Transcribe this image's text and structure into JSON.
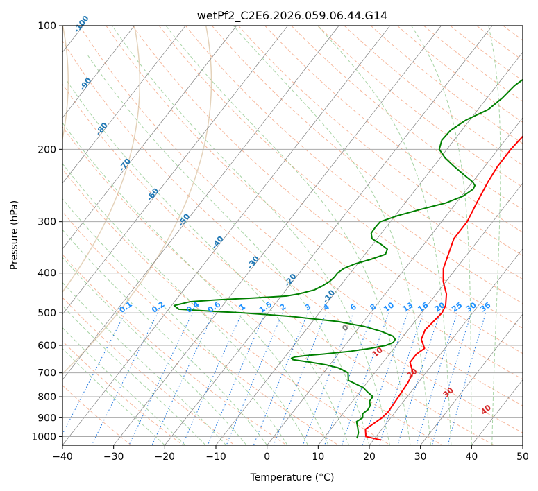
{
  "chart_data": {
    "type": "line",
    "chart_kind": "skew-t log-p",
    "title": "wetPf2_C2E6.2026.059.06.44.G14",
    "xlabel": "Temperature (°C)",
    "ylabel": "Pressure (hPa)",
    "xlim": [
      -40,
      50
    ],
    "ylim": [
      1050,
      100
    ],
    "y_scale": "log",
    "grid": true,
    "x_ticks": [
      -40,
      -30,
      -20,
      -10,
      0,
      10,
      20,
      30,
      40,
      50
    ],
    "y_ticks": [
      100,
      200,
      300,
      400,
      500,
      600,
      700,
      800,
      900,
      1000
    ],
    "series": [
      {
        "color": "#ff0000",
        "role": "temperature",
        "pressure": [
          1020,
          1000,
          960,
          900,
          870,
          800,
          740,
          700,
          660,
          630,
          610,
          580,
          550,
          500,
          480,
          450,
          420,
          390,
          360,
          330,
          300,
          270,
          240,
          220,
          200,
          180,
          160,
          140,
          130,
          120,
          110,
          100
        ],
        "values": [
          21.5,
          18.0,
          16.8,
          18.3,
          18.6,
          18.3,
          18.0,
          17.5,
          15.3,
          15.3,
          16.0,
          14.0,
          13.3,
          14.0,
          13.6,
          12.0,
          9.5,
          7.5,
          6.3,
          5.0,
          5.0,
          4.0,
          3.0,
          2.5,
          2.5,
          3.0,
          3.7,
          5.0,
          6.5,
          8.7,
          11.0,
          14.0
        ]
      },
      {
        "color": "#008000",
        "role": "dewpoint",
        "pressure": [
          1010,
          980,
          950,
          920,
          900,
          880,
          860,
          840,
          820,
          800,
          780,
          760,
          730,
          700,
          690,
          680,
          670,
          660,
          650,
          645,
          640,
          635,
          630,
          620,
          610,
          600,
          590,
          580,
          570,
          555,
          540,
          525,
          510,
          500,
          495,
          490,
          480,
          470,
          465,
          460,
          455,
          450,
          440,
          430,
          420,
          410,
          400,
          390,
          380,
          370,
          360,
          350,
          340,
          330,
          320,
          310,
          300,
          290,
          280,
          270,
          260,
          250,
          245,
          240,
          230,
          220,
          210,
          200,
          190,
          180,
          170,
          160,
          150,
          140,
          130,
          120,
          110,
          100
        ],
        "values": [
          16.5,
          16.0,
          15.0,
          13.9,
          14.5,
          13.9,
          14.3,
          14.1,
          13.3,
          13.3,
          11.6,
          10.0,
          6.0,
          4.8,
          3.5,
          2.0,
          -0.5,
          -4.0,
          -8.0,
          -8.5,
          -8.0,
          -6.0,
          -3.0,
          2.0,
          5.5,
          8.0,
          9.0,
          8.9,
          8.0,
          5.0,
          1.0,
          -5.0,
          -15.0,
          -25.0,
          -32.0,
          -38.0,
          -39.5,
          -37.0,
          -32.0,
          -25.0,
          -19.0,
          -17.0,
          -14.5,
          -13.5,
          -12.8,
          -12.5,
          -12.5,
          -12.0,
          -10.5,
          -8.0,
          -6.0,
          -6.4,
          -8.5,
          -11.0,
          -12.0,
          -12.1,
          -12.0,
          -9.5,
          -6.0,
          -2.0,
          0.3,
          1.2,
          1.0,
          0.0,
          -3.0,
          -6.0,
          -9.0,
          -11.5,
          -12.4,
          -12.2,
          -10.8,
          -8.0,
          -7.0,
          -6.5,
          -5.0,
          -3.0,
          0.0,
          0.0
        ]
      }
    ],
    "dry_adiabat_labels": [
      "-100",
      "-90",
      "-80",
      "-70",
      "-60",
      "-50",
      "-40",
      "-30",
      "-20",
      "-10"
    ],
    "dry_adiabat_label_values": [
      -100,
      -90,
      -80,
      -70,
      -60,
      -50,
      -40,
      -30,
      -20,
      -10
    ],
    "mixing_ratio_labels": [
      "0.1",
      "0.2",
      "0.4",
      "0.6",
      "1",
      "1.5",
      "2",
      "3",
      "4",
      "6",
      "8",
      "10",
      "13",
      "16",
      "20",
      "25",
      "30",
      "36"
    ],
    "mixing_ratio_values": [
      0.1,
      0.2,
      0.4,
      0.6,
      1,
      1.5,
      2,
      3,
      4,
      6,
      8,
      10,
      13,
      16,
      20,
      25,
      30,
      36
    ],
    "moist_adiabat_labels": [
      "0",
      "10",
      "20",
      "30",
      "40"
    ],
    "moist_adiabat_label_values": [
      0,
      10,
      20,
      30,
      40
    ],
    "colors": {
      "temperature": "#ff0000",
      "dewpoint": "#008000",
      "dry_adiabat": "#f4a582",
      "moist_adiabat": "#92c98f",
      "mixing_ratio": "#1f77e0",
      "dry_label": "#1f77b4",
      "mixing_label": "#1e90ff",
      "moist_label": "#d62728",
      "zero_label": "#7f7f7f",
      "isotherm": "#808080",
      "isobar": "#aaaaaa",
      "tan_curve": "#d2b48c"
    }
  }
}
